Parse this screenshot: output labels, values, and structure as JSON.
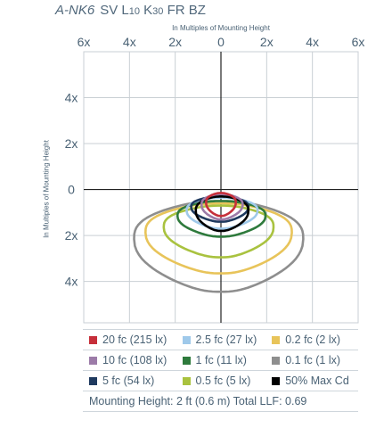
{
  "header": {
    "model": "A-NK6",
    "config_parts": [
      {
        "text": "SV L",
        "sub": false
      },
      {
        "text": "10",
        "sub": true
      },
      {
        "text": " K",
        "sub": false
      },
      {
        "text": "30",
        "sub": true
      },
      {
        "text": " FR BZ",
        "sub": false
      }
    ]
  },
  "chart_data": {
    "type": "isofootcandle-plot",
    "title": "A-NK6 SV L10 K30 FR BZ",
    "xlabel": "In Multiples of Mounting Height",
    "ylabel": "In Multiples of Mounting Height",
    "xlim": [
      -6,
      6
    ],
    "ylim": [
      -5.8,
      6
    ],
    "grid": true,
    "x_ticks": [
      {
        "value": -6,
        "label": "6x"
      },
      {
        "value": -4,
        "label": "4x"
      },
      {
        "value": -2,
        "label": "2x"
      },
      {
        "value": 0,
        "label": "0"
      },
      {
        "value": 2,
        "label": "2x"
      },
      {
        "value": 4,
        "label": "4x"
      },
      {
        "value": 6,
        "label": "6x"
      }
    ],
    "y_ticks": [
      {
        "value": 4,
        "label": "4x"
      },
      {
        "value": 2,
        "label": "2x"
      },
      {
        "value": 0,
        "label": "0"
      },
      {
        "value": -2,
        "label": "2x"
      },
      {
        "value": -4,
        "label": "4x"
      }
    ],
    "contours": [
      {
        "label": "0.1 fc (1 lx)",
        "color": "#8e8e8e",
        "extent": {
          "x": [
            -3.8,
            3.6
          ],
          "y": [
            -4.45,
            -0.5
          ]
        }
      },
      {
        "label": "0.2 fc (2 lx)",
        "color": "#e8c45a",
        "extent": {
          "x": [
            -3.3,
            3.1
          ],
          "y": [
            -3.65,
            -0.6
          ]
        }
      },
      {
        "label": "0.5 fc (5 lx)",
        "color": "#a9c23f",
        "extent": {
          "x": [
            -2.5,
            2.3
          ],
          "y": [
            -2.95,
            -0.7
          ]
        }
      },
      {
        "label": "1 fc (11 lx)",
        "color": "#2e7a3c",
        "extent": {
          "x": [
            -1.9,
            1.95
          ],
          "y": [
            -2.05,
            -0.5
          ]
        }
      },
      {
        "label": "2.5 fc (27 lx)",
        "color": "#9fc9ea",
        "extent": {
          "x": [
            -1.5,
            1.6
          ],
          "y": [
            -1.7,
            -0.35
          ]
        }
      },
      {
        "label": "5 fc (54 lx)",
        "color": "#1f3a5f",
        "extent": {
          "x": [
            -1.3,
            1.2
          ],
          "y": [
            -1.4,
            -0.3
          ]
        }
      },
      {
        "label": "50% Max Cd",
        "color": "#000000",
        "extent": {
          "x": [
            -1.1,
            1.2
          ],
          "y": [
            -1.8,
            -0.3
          ]
        }
      },
      {
        "label": "10 fc (108 lx)",
        "color": "#9c7ba8",
        "extent": {
          "x": [
            -0.85,
            0.95
          ],
          "y": [
            -1.3,
            -0.2
          ]
        }
      },
      {
        "label": "20 fc (215 lx)",
        "color": "#c62f3a",
        "extent": {
          "x": [
            -0.65,
            0.65
          ],
          "y": [
            -1.15,
            -0.15
          ]
        }
      }
    ]
  },
  "legend": {
    "rows": [
      [
        {
          "label": "20 fc (215 lx)",
          "color": "#c62f3a"
        },
        {
          "label": "2.5 fc (27 lx)",
          "color": "#9fc9ea"
        },
        {
          "label": "0.2 fc (2 lx)",
          "color": "#e8c45a"
        }
      ],
      [
        {
          "label": "10 fc (108 lx)",
          "color": "#9c7ba8"
        },
        {
          "label": "1 fc (11 lx)",
          "color": "#2e7a3c"
        },
        {
          "label": "0.1 fc (1 lx)",
          "color": "#8e8e8e"
        }
      ],
      [
        {
          "label": "5 fc (54 lx)",
          "color": "#1f3a5f"
        },
        {
          "label": "0.5 fc (5 lx)",
          "color": "#a9c23f"
        },
        {
          "label": "50% Max Cd",
          "color": "#000000"
        }
      ]
    ],
    "footer": "Mounting Height: 2 ft (0.6 m) Total LLF: 0.69"
  }
}
